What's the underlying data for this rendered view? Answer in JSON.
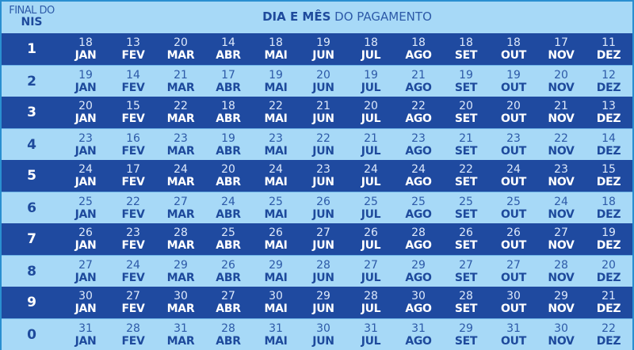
{
  "header": {
    "nis_line1": "FINAL DO",
    "nis_line2": "NIS",
    "title_bold": "DIA E MÊS",
    "title_rest": " DO PAGAMENTO"
  },
  "months": [
    "JAN",
    "FEV",
    "MAR",
    "ABR",
    "MAI",
    "JUN",
    "JUL",
    "AGO",
    "SET",
    "OUT",
    "NOV",
    "DEZ"
  ],
  "rows": [
    {
      "nis": "1",
      "days": [
        "18",
        "13",
        "20",
        "14",
        "18",
        "19",
        "18",
        "18",
        "18",
        "18",
        "17",
        "11"
      ]
    },
    {
      "nis": "2",
      "days": [
        "19",
        "14",
        "21",
        "17",
        "19",
        "20",
        "19",
        "21",
        "19",
        "19",
        "20",
        "12"
      ]
    },
    {
      "nis": "3",
      "days": [
        "20",
        "15",
        "22",
        "18",
        "22",
        "21",
        "20",
        "22",
        "20",
        "20",
        "21",
        "13"
      ]
    },
    {
      "nis": "4",
      "days": [
        "23",
        "16",
        "23",
        "19",
        "23",
        "22",
        "21",
        "23",
        "21",
        "23",
        "22",
        "14"
      ]
    },
    {
      "nis": "5",
      "days": [
        "24",
        "17",
        "24",
        "20",
        "24",
        "23",
        "24",
        "24",
        "22",
        "24",
        "23",
        "15"
      ]
    },
    {
      "nis": "6",
      "days": [
        "25",
        "22",
        "27",
        "24",
        "25",
        "26",
        "25",
        "25",
        "25",
        "25",
        "24",
        "18"
      ]
    },
    {
      "nis": "7",
      "days": [
        "26",
        "23",
        "28",
        "25",
        "26",
        "27",
        "26",
        "28",
        "26",
        "26",
        "27",
        "19"
      ]
    },
    {
      "nis": "8",
      "days": [
        "27",
        "24",
        "29",
        "26",
        "29",
        "28",
        "27",
        "29",
        "27",
        "27",
        "28",
        "20"
      ]
    },
    {
      "nis": "9",
      "days": [
        "30",
        "27",
        "30",
        "27",
        "30",
        "29",
        "28",
        "30",
        "28",
        "30",
        "29",
        "21"
      ]
    },
    {
      "nis": "0",
      "days": [
        "31",
        "28",
        "31",
        "28",
        "31",
        "30",
        "31",
        "31",
        "29",
        "31",
        "30",
        "22"
      ]
    }
  ],
  "colors": {
    "dark_row": "#1f4aa0",
    "light_row": "#a7d9f7",
    "text_dark": "#1e4a9c",
    "text_light": "#ffffff"
  }
}
